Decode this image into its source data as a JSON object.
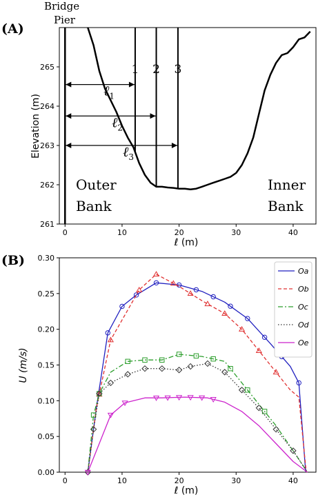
{
  "chart_data": [
    {
      "panel": "(A)",
      "type": "line",
      "ylabel": "Elevation (m)",
      "xlabel": "ℓ (m)",
      "xlim": [
        -1,
        44
      ],
      "ylim": [
        261,
        266
      ],
      "xticks": [
        0,
        10,
        20,
        30,
        40
      ],
      "yticks": [
        261,
        262,
        263,
        264,
        265
      ],
      "x": [
        4.0,
        5.0,
        6.0,
        7.0,
        8.0,
        9.0,
        10.0,
        11.0,
        12.0,
        13.0,
        14.0,
        15.0,
        16.0,
        17.0,
        18.0,
        19.0,
        20.0,
        21.0,
        22.0,
        23.0,
        24.0,
        25.0,
        26.0,
        27.0,
        28.0,
        29.0,
        30.0,
        31.0,
        32.0,
        33.0,
        34.0,
        35.0,
        36.0,
        37.0,
        38.0,
        39.0,
        40.0,
        41.0,
        42.0,
        43.0
      ],
      "y": [
        265.95,
        265.55,
        264.9,
        264.45,
        264.15,
        263.85,
        263.5,
        263.2,
        262.95,
        262.55,
        262.25,
        262.05,
        261.95,
        261.95,
        261.93,
        261.92,
        261.9,
        261.9,
        261.88,
        261.9,
        261.95,
        262.0,
        262.05,
        262.1,
        262.15,
        262.2,
        262.3,
        262.5,
        262.8,
        263.2,
        263.8,
        264.4,
        264.8,
        265.1,
        265.3,
        265.35,
        265.5,
        265.7,
        265.75,
        265.9
      ],
      "sections": [
        {
          "label": "1",
          "x": 12.3
        },
        {
          "label": "2",
          "x": 16.0
        },
        {
          "label": "3",
          "x": 19.8
        }
      ],
      "distances": [
        {
          "label": "ℓ",
          "sub": "1",
          "x_end": 12.3,
          "y": 264.55
        },
        {
          "label": "ℓ",
          "sub": "2",
          "x_end": 16.0,
          "y": 263.75
        },
        {
          "label": "ℓ",
          "sub": "3",
          "x_end": 19.8,
          "y": 263.0
        }
      ],
      "annotations": {
        "pier_line1": "Bridge",
        "pier_line2": "Pier",
        "outer_line1": "Outer",
        "outer_line2": "Bank",
        "inner_line1": "Inner",
        "inner_line2": "Bank"
      }
    },
    {
      "panel": "(B)",
      "type": "line",
      "ylabel": "U (m/s)",
      "xlabel": "ℓ (m)",
      "xlim": [
        -1,
        44
      ],
      "ylim": [
        0,
        0.3
      ],
      "xticks": [
        0,
        10,
        20,
        30,
        40
      ],
      "yticks": [
        0.0,
        0.05,
        0.1,
        0.15,
        0.2,
        0.25,
        0.3
      ],
      "legend_position": "top-right",
      "series": [
        {
          "name": "Oa",
          "color": "#1f1fbf",
          "dash": "solid",
          "marker": "circle",
          "x": [
            4,
            5.5,
            7.5,
            10,
            12.5,
            16,
            20,
            24,
            28,
            32,
            36,
            39.5,
            41,
            42.2
          ],
          "y": [
            0.0,
            0.09,
            0.195,
            0.232,
            0.248,
            0.265,
            0.262,
            0.253,
            0.238,
            0.215,
            0.18,
            0.148,
            0.125,
            0.0
          ],
          "marker_x": [
            7.5,
            10,
            12.5,
            16,
            20,
            23,
            26,
            29,
            32,
            35,
            38,
            41
          ]
        },
        {
          "name": "Ob",
          "color": "#e03030",
          "dash": "dashed",
          "marker": "triangle-up",
          "x": [
            4,
            5.5,
            8,
            10.5,
            13,
            16,
            20,
            24,
            28,
            31,
            34,
            37,
            39.5,
            41,
            42.3
          ],
          "y": [
            0.0,
            0.09,
            0.185,
            0.22,
            0.255,
            0.277,
            0.26,
            0.24,
            0.222,
            0.2,
            0.17,
            0.14,
            0.115,
            0.105,
            0.0
          ],
          "marker_x": [
            6,
            8,
            13,
            16,
            19,
            22,
            25,
            28,
            31,
            34,
            37
          ]
        },
        {
          "name": "Oc",
          "color": "#2a9d2a",
          "dash": "dashdot",
          "marker": "square",
          "x": [
            4,
            5,
            6,
            8,
            11,
            14,
            17,
            20,
            24,
            28,
            31,
            34,
            37,
            40,
            42.5
          ],
          "y": [
            0.0,
            0.08,
            0.11,
            0.14,
            0.155,
            0.157,
            0.157,
            0.165,
            0.162,
            0.155,
            0.125,
            0.095,
            0.065,
            0.03,
            0.0
          ],
          "marker_x": [
            5,
            6,
            11,
            14,
            17,
            20,
            23,
            26,
            29,
            32,
            35
          ]
        },
        {
          "name": "Od",
          "color": "#333333",
          "dash": "dotted",
          "marker": "diamond",
          "x": [
            4,
            5,
            6,
            8,
            11,
            14,
            17,
            20,
            22,
            25,
            28,
            31,
            34,
            37,
            40,
            42.5
          ],
          "y": [
            0.0,
            0.06,
            0.11,
            0.125,
            0.137,
            0.145,
            0.145,
            0.143,
            0.148,
            0.152,
            0.14,
            0.115,
            0.09,
            0.06,
            0.03,
            0.0
          ],
          "marker_x": [
            4,
            5,
            6,
            8,
            11,
            14,
            17,
            20,
            22,
            25,
            28,
            31,
            34,
            37,
            40
          ]
        },
        {
          "name": "Oe",
          "color": "#cc22cc",
          "dash": "solid",
          "marker": "triangle-down",
          "x": [
            4,
            6,
            8,
            10.5,
            14,
            17,
            21,
            25,
            28,
            31,
            34,
            37,
            40,
            42.5
          ],
          "y": [
            0.0,
            0.04,
            0.08,
            0.097,
            0.104,
            0.104,
            0.105,
            0.104,
            0.098,
            0.085,
            0.065,
            0.04,
            0.015,
            0.0
          ],
          "marker_x": [
            4,
            8,
            10.5,
            16,
            18,
            20,
            22,
            24,
            26
          ]
        }
      ]
    }
  ]
}
